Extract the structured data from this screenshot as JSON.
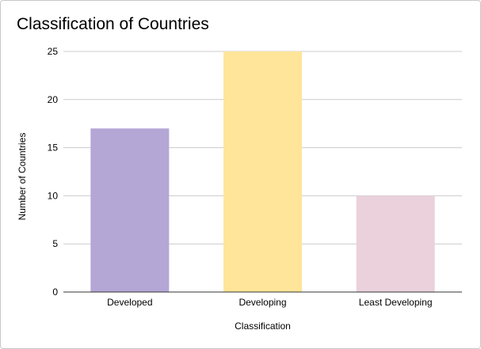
{
  "chart_data": {
    "type": "bar",
    "title": "Classification of Countries",
    "xlabel": "Classification",
    "ylabel": "Number of Countries",
    "categories": [
      "Developed",
      "Developing",
      "Least Developing"
    ],
    "values": [
      17,
      25,
      10
    ],
    "colors": [
      "#b4a7d6",
      "#ffe599",
      "#ead1dc"
    ],
    "ylim": [
      0,
      25
    ],
    "yticks": [
      0,
      5,
      10,
      15,
      20,
      25
    ],
    "grid": true,
    "legend": "none"
  }
}
